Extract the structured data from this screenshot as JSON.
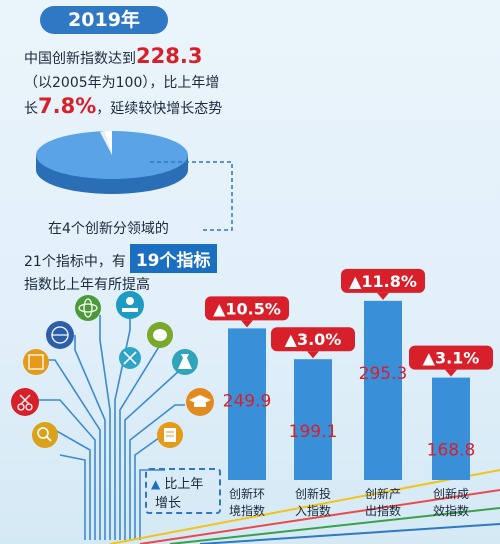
{
  "header": {
    "year": "2019年",
    "line1_pre": "中国创新指数达到",
    "line1_value": "228.3",
    "line2": "（以2005年为100），比上年增",
    "line3_pre": "长",
    "line3_value": "7.8%",
    "line3_post": "，延续较快增长态势"
  },
  "subtext": {
    "line1": "在4个创新分领域的",
    "line2_pre": "21个指标中，有",
    "line2_highlight": "19个指标",
    "line3": "指数比上年有所提高"
  },
  "legend": {
    "symbol": "▲",
    "line1": "比上年",
    "line2": "增长"
  },
  "colors": {
    "bar": "#3a8fd9",
    "badge": "#d8202a",
    "highlight": "#1a6fc0",
    "value_text": "#d8202a"
  },
  "icons": [
    "atom-icon",
    "apple-book-icon",
    "globe-icon",
    "palette-icon",
    "abacus-icon",
    "tools-icon",
    "flask-icon",
    "scissors-icon",
    "graduation-cap-icon",
    "magnifier-icon",
    "document-icon"
  ],
  "chart_data": {
    "type": "bar",
    "categories": [
      "创新环境指数",
      "创新投入指数",
      "创新产出指数",
      "创新成效指数"
    ],
    "category_lines": [
      [
        "创新环",
        "境指数"
      ],
      [
        "创新投",
        "入指数"
      ],
      [
        "创新产",
        "出指数"
      ],
      [
        "创新成",
        "效指数"
      ]
    ],
    "values": [
      249.9,
      199.1,
      295.3,
      168.8
    ],
    "value_labels": [
      "249.9",
      "199.1",
      "295.3",
      "168.8"
    ],
    "growth": [
      "▲10.5%",
      "▲3.0%",
      "▲11.8%",
      "▲3.1%"
    ],
    "ylim": [
      0,
      300
    ],
    "title": "",
    "xlabel": "",
    "ylabel": ""
  }
}
